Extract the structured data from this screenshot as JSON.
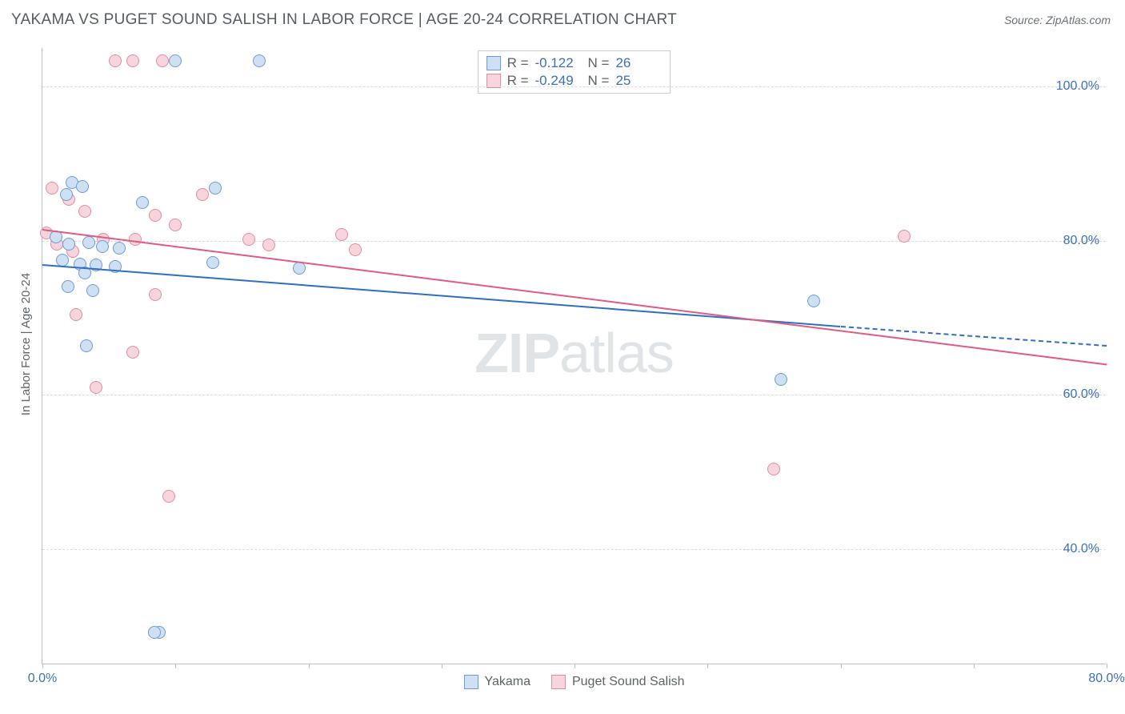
{
  "title": "YAKAMA VS PUGET SOUND SALISH IN LABOR FORCE | AGE 20-24 CORRELATION CHART",
  "source": "Source: ZipAtlas.com",
  "y_axis_label": "In Labor Force | Age 20-24",
  "watermark_bold": "ZIP",
  "watermark_light": "atlas",
  "chart": {
    "type": "scatter-with-trend",
    "xlim": [
      0,
      80
    ],
    "ylim": [
      25,
      105
    ],
    "x_ticks": [
      0,
      10,
      20,
      30,
      40,
      50,
      60,
      70,
      80
    ],
    "x_tick_labels": {
      "0": "0.0%",
      "80": "80.0%"
    },
    "y_gridlines": [
      40,
      60,
      80,
      100
    ],
    "y_tick_labels": {
      "40": "40.0%",
      "60": "60.0%",
      "80": "80.0%",
      "100": "100.0%"
    },
    "background_color": "#ffffff",
    "grid_color": "#d8dbde",
    "axis_color": "#b9bec2",
    "tick_label_color": "#3d6fb5",
    "point_radius": 8,
    "point_stroke_width": 1.5,
    "series": [
      {
        "name": "Yakama",
        "fill": "#cfe0f3",
        "stroke": "#6a9bd8",
        "trend_color": "#2f6ec4",
        "trend_solid": {
          "x1": 0,
          "y1": 77,
          "x2": 60,
          "y2": 69
        },
        "trend_dash": {
          "x1": 60,
          "y1": 69,
          "x2": 80,
          "y2": 66.5
        },
        "R": "-0.122",
        "N": "26",
        "points": [
          {
            "x": 10.0,
            "y": 103.3
          },
          {
            "x": 16.3,
            "y": 103.3
          },
          {
            "x": 2.2,
            "y": 87.5
          },
          {
            "x": 3.0,
            "y": 87.0
          },
          {
            "x": 1.8,
            "y": 86.0
          },
          {
            "x": 7.5,
            "y": 85.0
          },
          {
            "x": 13.0,
            "y": 86.8
          },
          {
            "x": 1.0,
            "y": 80.5
          },
          {
            "x": 2.0,
            "y": 79.5
          },
          {
            "x": 3.5,
            "y": 79.8
          },
          {
            "x": 4.5,
            "y": 79.2
          },
          {
            "x": 5.8,
            "y": 79.0
          },
          {
            "x": 1.5,
            "y": 77.5
          },
          {
            "x": 2.8,
            "y": 77.0
          },
          {
            "x": 4.0,
            "y": 76.8
          },
          {
            "x": 5.5,
            "y": 76.6
          },
          {
            "x": 3.2,
            "y": 75.8
          },
          {
            "x": 12.8,
            "y": 77.2
          },
          {
            "x": 19.3,
            "y": 76.4
          },
          {
            "x": 1.9,
            "y": 74.0
          },
          {
            "x": 3.8,
            "y": 73.5
          },
          {
            "x": 3.3,
            "y": 66.3
          },
          {
            "x": 58.0,
            "y": 72.2
          },
          {
            "x": 55.5,
            "y": 62.0
          },
          {
            "x": 8.8,
            "y": 29.2
          },
          {
            "x": 8.4,
            "y": 29.2
          }
        ]
      },
      {
        "name": "Puget Sound Salish",
        "fill": "#f6d5dd",
        "stroke": "#e48aa0",
        "trend_color": "#e05a82",
        "trend_solid": {
          "x1": 0,
          "y1": 81.5,
          "x2": 80,
          "y2": 64
        },
        "R": "-0.249",
        "N": "25",
        "points": [
          {
            "x": 5.5,
            "y": 103.3
          },
          {
            "x": 6.8,
            "y": 103.3
          },
          {
            "x": 9.0,
            "y": 103.3
          },
          {
            "x": 0.7,
            "y": 86.8
          },
          {
            "x": 2.0,
            "y": 85.4
          },
          {
            "x": 3.2,
            "y": 83.8
          },
          {
            "x": 12.0,
            "y": 86.0
          },
          {
            "x": 8.5,
            "y": 83.3
          },
          {
            "x": 10.0,
            "y": 82.0
          },
          {
            "x": 0.3,
            "y": 81.0
          },
          {
            "x": 1.1,
            "y": 79.5
          },
          {
            "x": 2.3,
            "y": 78.6
          },
          {
            "x": 4.6,
            "y": 80.2
          },
          {
            "x": 7.0,
            "y": 80.2
          },
          {
            "x": 15.5,
            "y": 80.2
          },
          {
            "x": 17.0,
            "y": 79.4
          },
          {
            "x": 22.5,
            "y": 80.8
          },
          {
            "x": 23.5,
            "y": 78.8
          },
          {
            "x": 8.5,
            "y": 73.0
          },
          {
            "x": 2.5,
            "y": 70.4
          },
          {
            "x": 6.8,
            "y": 65.5
          },
          {
            "x": 4.0,
            "y": 61.0
          },
          {
            "x": 64.8,
            "y": 80.6
          },
          {
            "x": 55.0,
            "y": 50.4
          },
          {
            "x": 9.5,
            "y": 46.8
          }
        ]
      }
    ],
    "stats_legend_labels": {
      "R": "R =",
      "N": "N ="
    }
  },
  "series_legend": [
    {
      "swatch_fill": "#cfe0f3",
      "swatch_stroke": "#6a9bd8",
      "label": "Yakama"
    },
    {
      "swatch_fill": "#f6d5dd",
      "swatch_stroke": "#e48aa0",
      "label": "Puget Sound Salish"
    }
  ]
}
